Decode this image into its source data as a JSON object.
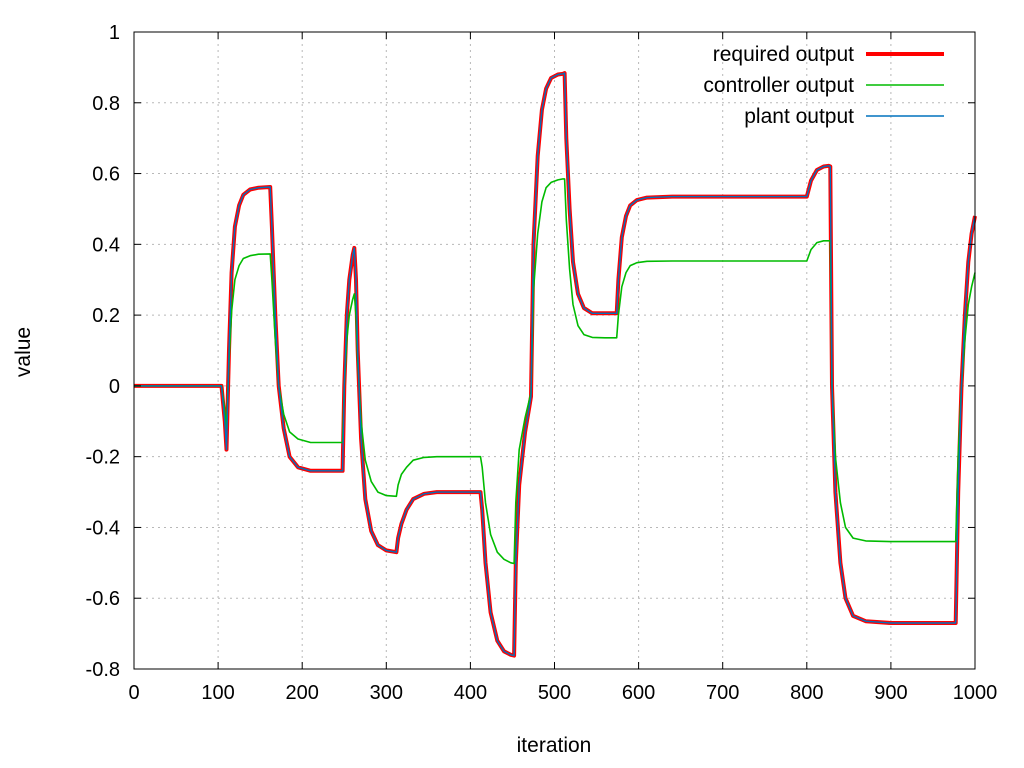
{
  "chart_data": {
    "type": "line",
    "title": "",
    "xlabel": "iteration",
    "ylabel": "value",
    "xlim": [
      0,
      1000
    ],
    "ylim": [
      -0.8,
      1.0
    ],
    "xticks": [
      "0",
      "100",
      "200",
      "300",
      "400",
      "500",
      "600",
      "700",
      "800",
      "900",
      "1000"
    ],
    "yticks": [
      "-0.8",
      "-0.6",
      "-0.4",
      "-0.2",
      "0",
      "0.2",
      "0.4",
      "0.6",
      "0.8",
      "1"
    ],
    "grid": true,
    "legend_position": "top-right",
    "series": [
      {
        "name": "required output",
        "color": "#ff0000",
        "x": [
          0,
          104,
          108,
          110,
          113,
          116,
          120,
          125,
          130,
          138,
          148,
          162,
          164,
          168,
          172,
          178,
          185,
          195,
          210,
          248,
          250,
          253,
          256,
          260,
          262,
          264,
          266,
          270,
          275,
          282,
          290,
          300,
          312,
          314,
          318,
          324,
          332,
          345,
          360,
          380,
          412,
          414,
          418,
          424,
          432,
          440,
          448,
          452,
          454,
          458,
          465,
          470,
          472,
          475,
          480,
          485,
          490,
          496,
          504,
          510,
          512,
          514,
          518,
          522,
          528,
          535,
          545,
          560,
          574,
          576,
          580,
          585,
          590,
          598,
          610,
          640,
          700,
          798,
          800,
          805,
          812,
          820,
          826,
          828,
          830,
          834,
          840,
          846,
          855,
          870,
          900,
          975,
          977,
          980,
          984,
          988,
          992,
          996,
          1000
        ],
        "y": [
          0,
          0,
          -0.1,
          -0.18,
          0.1,
          0.32,
          0.45,
          0.51,
          0.54,
          0.555,
          0.56,
          0.562,
          0.45,
          0.2,
          0.0,
          -0.12,
          -0.2,
          -0.23,
          -0.24,
          -0.24,
          0.0,
          0.2,
          0.3,
          0.37,
          0.39,
          0.3,
          0.1,
          -0.15,
          -0.32,
          -0.41,
          -0.45,
          -0.465,
          -0.47,
          -0.43,
          -0.39,
          -0.35,
          -0.32,
          -0.305,
          -0.3,
          -0.3,
          -0.3,
          -0.35,
          -0.5,
          -0.64,
          -0.72,
          -0.75,
          -0.76,
          -0.762,
          -0.5,
          -0.28,
          -0.13,
          -0.06,
          -0.03,
          0.4,
          0.65,
          0.78,
          0.84,
          0.87,
          0.88,
          0.882,
          0.884,
          0.7,
          0.5,
          0.35,
          0.26,
          0.22,
          0.205,
          0.205,
          0.205,
          0.3,
          0.42,
          0.48,
          0.51,
          0.525,
          0.532,
          0.535,
          0.535,
          0.535,
          0.535,
          0.58,
          0.61,
          0.62,
          0.622,
          0.62,
          0.0,
          -0.3,
          -0.5,
          -0.6,
          -0.65,
          -0.665,
          -0.67,
          -0.67,
          -0.67,
          -0.3,
          0.0,
          0.2,
          0.35,
          0.43,
          0.48
        ]
      },
      {
        "name": "controller output",
        "color": "#00bb00",
        "x": [
          0,
          104,
          108,
          110,
          113,
          116,
          120,
          125,
          130,
          138,
          148,
          162,
          164,
          168,
          172,
          178,
          185,
          195,
          210,
          248,
          250,
          253,
          256,
          260,
          262,
          264,
          266,
          270,
          275,
          282,
          290,
          300,
          312,
          314,
          318,
          324,
          332,
          345,
          360,
          380,
          412,
          414,
          418,
          424,
          432,
          440,
          448,
          452,
          454,
          458,
          465,
          470,
          472,
          475,
          480,
          485,
          490,
          496,
          504,
          510,
          512,
          514,
          518,
          522,
          528,
          535,
          545,
          560,
          574,
          576,
          580,
          585,
          590,
          598,
          610,
          640,
          700,
          798,
          800,
          805,
          812,
          820,
          826,
          828,
          830,
          834,
          840,
          846,
          855,
          870,
          900,
          975,
          977,
          980,
          984,
          988,
          992,
          996,
          1000
        ],
        "y": [
          0,
          0,
          -0.07,
          -0.12,
          0.07,
          0.21,
          0.3,
          0.34,
          0.36,
          0.368,
          0.372,
          0.373,
          0.3,
          0.13,
          0.0,
          -0.08,
          -0.13,
          -0.15,
          -0.16,
          -0.16,
          0.0,
          0.13,
          0.2,
          0.245,
          0.26,
          0.2,
          0.07,
          -0.1,
          -0.21,
          -0.27,
          -0.3,
          -0.31,
          -0.312,
          -0.28,
          -0.25,
          -0.23,
          -0.21,
          -0.202,
          -0.2,
          -0.2,
          -0.2,
          -0.23,
          -0.33,
          -0.42,
          -0.47,
          -0.49,
          -0.5,
          -0.502,
          -0.33,
          -0.18,
          -0.09,
          -0.04,
          -0.02,
          0.27,
          0.43,
          0.52,
          0.56,
          0.575,
          0.582,
          0.585,
          0.585,
          0.47,
          0.33,
          0.23,
          0.17,
          0.145,
          0.137,
          0.136,
          0.136,
          0.2,
          0.28,
          0.32,
          0.34,
          0.348,
          0.352,
          0.353,
          0.353,
          0.353,
          0.353,
          0.385,
          0.405,
          0.41,
          0.41,
          0.41,
          0.0,
          -0.2,
          -0.33,
          -0.4,
          -0.43,
          -0.438,
          -0.44,
          -0.44,
          -0.44,
          -0.2,
          0.0,
          0.13,
          0.23,
          0.28,
          0.32
        ]
      },
      {
        "name": "plant output",
        "color": "#0072bd",
        "x": [
          0,
          104,
          108,
          110,
          113,
          116,
          120,
          125,
          130,
          138,
          148,
          162,
          164,
          168,
          172,
          178,
          185,
          195,
          210,
          248,
          250,
          253,
          256,
          260,
          262,
          264,
          266,
          270,
          275,
          282,
          290,
          300,
          312,
          314,
          318,
          324,
          332,
          345,
          360,
          380,
          412,
          414,
          418,
          424,
          432,
          440,
          448,
          452,
          454,
          458,
          465,
          470,
          472,
          475,
          480,
          485,
          490,
          496,
          504,
          510,
          512,
          514,
          518,
          522,
          528,
          535,
          545,
          560,
          574,
          576,
          580,
          585,
          590,
          598,
          610,
          640,
          700,
          798,
          800,
          805,
          812,
          820,
          826,
          828,
          830,
          834,
          840,
          846,
          855,
          870,
          900,
          975,
          977,
          980,
          984,
          988,
          992,
          996,
          1000
        ],
        "y": [
          0,
          0,
          -0.1,
          -0.18,
          0.1,
          0.32,
          0.45,
          0.51,
          0.54,
          0.555,
          0.56,
          0.562,
          0.45,
          0.2,
          0.0,
          -0.12,
          -0.2,
          -0.23,
          -0.24,
          -0.24,
          0.0,
          0.2,
          0.3,
          0.37,
          0.39,
          0.3,
          0.1,
          -0.15,
          -0.32,
          -0.41,
          -0.45,
          -0.465,
          -0.47,
          -0.43,
          -0.39,
          -0.35,
          -0.32,
          -0.305,
          -0.3,
          -0.3,
          -0.3,
          -0.35,
          -0.5,
          -0.64,
          -0.72,
          -0.75,
          -0.76,
          -0.762,
          -0.5,
          -0.28,
          -0.13,
          -0.06,
          -0.03,
          0.4,
          0.65,
          0.78,
          0.84,
          0.87,
          0.88,
          0.882,
          0.884,
          0.7,
          0.5,
          0.35,
          0.26,
          0.22,
          0.205,
          0.205,
          0.205,
          0.3,
          0.42,
          0.48,
          0.51,
          0.525,
          0.532,
          0.535,
          0.535,
          0.535,
          0.535,
          0.58,
          0.61,
          0.62,
          0.622,
          0.62,
          0.0,
          -0.3,
          -0.5,
          -0.6,
          -0.65,
          -0.665,
          -0.67,
          -0.67,
          -0.67,
          -0.3,
          0.0,
          0.2,
          0.35,
          0.43,
          0.48
        ]
      }
    ]
  }
}
